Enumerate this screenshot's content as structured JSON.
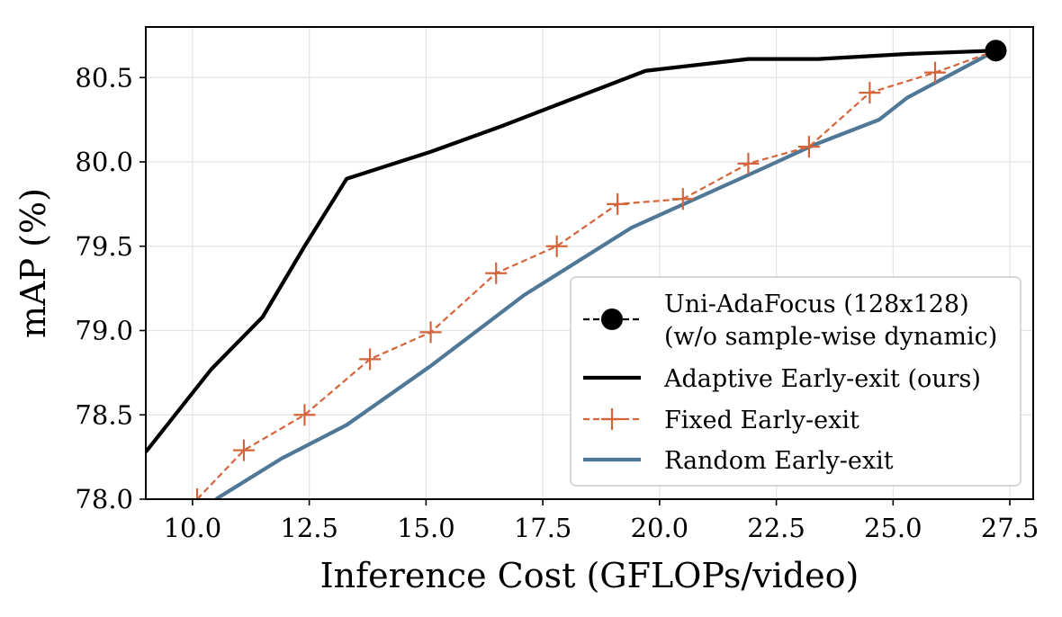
{
  "chart_data": {
    "type": "line",
    "xlabel": "Inference Cost (GFLOPs/video)",
    "ylabel": "mAP (%)",
    "xlim": [
      9.0,
      28.0
    ],
    "ylim": [
      78.0,
      80.8
    ],
    "xticks": [
      10.0,
      12.5,
      15.0,
      17.5,
      20.0,
      22.5,
      25.0,
      27.5
    ],
    "xtick_labels": [
      "10.0",
      "12.5",
      "15.0",
      "17.5",
      "20.0",
      "22.5",
      "25.0",
      "27.5"
    ],
    "yticks": [
      78.0,
      78.5,
      79.0,
      79.5,
      80.0,
      80.5
    ],
    "ytick_labels": [
      "78.0",
      "78.5",
      "79.0",
      "79.5",
      "80.0",
      "80.5"
    ],
    "grid": true,
    "legend_position": "lower-right",
    "series": [
      {
        "name": "Adaptive Early-exit (ours)",
        "color": "#000000",
        "style": "solid",
        "marker": "none",
        "x": [
          9.0,
          10.4,
          11.5,
          12.4,
          13.3,
          15.1,
          16.6,
          18.1,
          19.7,
          21.9,
          23.4,
          25.3,
          27.2
        ],
        "y": [
          78.28,
          78.77,
          79.08,
          79.5,
          79.9,
          80.06,
          80.21,
          80.37,
          80.54,
          80.61,
          80.61,
          80.64,
          80.66
        ]
      },
      {
        "name": "Fixed Early-exit",
        "color": "#d4653a",
        "style": "dashed",
        "marker": "plus",
        "x": [
          10.1,
          11.1,
          12.4,
          13.8,
          15.1,
          16.5,
          17.8,
          19.1,
          20.5,
          21.9,
          23.2,
          24.5,
          25.9,
          27.2
        ],
        "y": [
          78.0,
          78.29,
          78.5,
          78.83,
          78.99,
          79.34,
          79.5,
          79.75,
          79.78,
          79.99,
          80.09,
          80.41,
          80.53,
          80.66
        ]
      },
      {
        "name": "Random Early-exit",
        "color": "#4f7897",
        "style": "solid",
        "marker": "none",
        "x": [
          10.5,
          11.9,
          13.3,
          15.1,
          17.1,
          19.4,
          20.6,
          22.2,
          23.3,
          24.7,
          25.3,
          27.2
        ],
        "y": [
          78.0,
          78.24,
          78.44,
          78.79,
          79.21,
          79.61,
          79.76,
          79.96,
          80.1,
          80.25,
          80.38,
          80.66
        ]
      },
      {
        "name": "Uni-AdaFocus (128x128)",
        "name_line2": "(w/o sample-wise dynamic)",
        "color": "#000000",
        "style": "dashed",
        "marker": "circle",
        "x": [
          27.2
        ],
        "y": [
          80.66
        ]
      }
    ]
  }
}
